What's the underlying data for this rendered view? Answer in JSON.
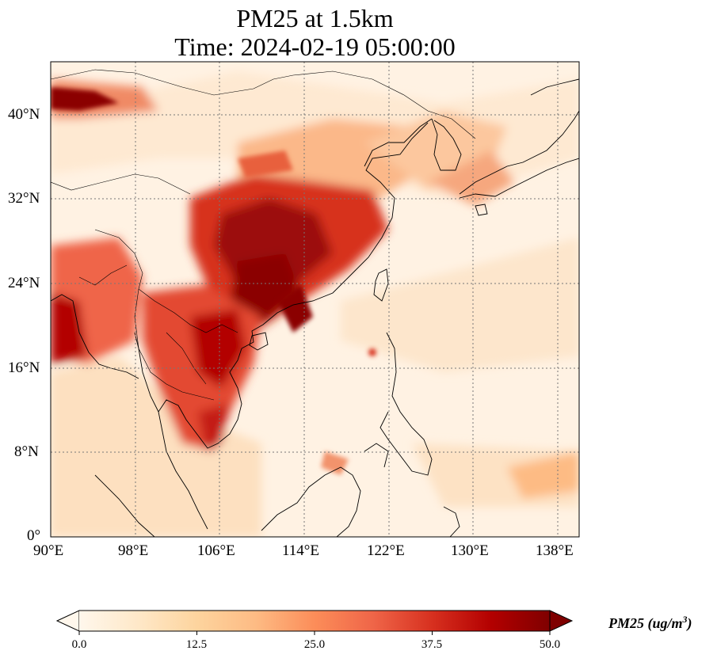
{
  "title_line1": "PM25 at 1.5km",
  "title_line2": "Time: 2024-02-19 05:00:00",
  "map": {
    "lon_range": [
      90,
      140
    ],
    "lat_range": [
      0,
      45
    ],
    "gridlines": true,
    "lat_ticks": [
      "40°N",
      "32°N",
      "24°N",
      "16°N",
      "8°N",
      "0°"
    ],
    "lon_ticks": [
      "90°E",
      "98°E",
      "106°E",
      "114°E",
      "122°E",
      "130°E",
      "138°E"
    ],
    "colormap": "OrRd",
    "colormap_colors": [
      "#fff7ec",
      "#fee8c8",
      "#fdd49e",
      "#fdbb84",
      "#fc8d59",
      "#ef6548",
      "#d7301f",
      "#b30000",
      "#7f0000"
    ]
  },
  "colorbar": {
    "ticks": [
      "0.0",
      "12.5",
      "25.0",
      "37.5",
      "50.0"
    ],
    "label": "PM25 (ug/m",
    "label_sup": "3",
    "label_end": ")"
  }
}
